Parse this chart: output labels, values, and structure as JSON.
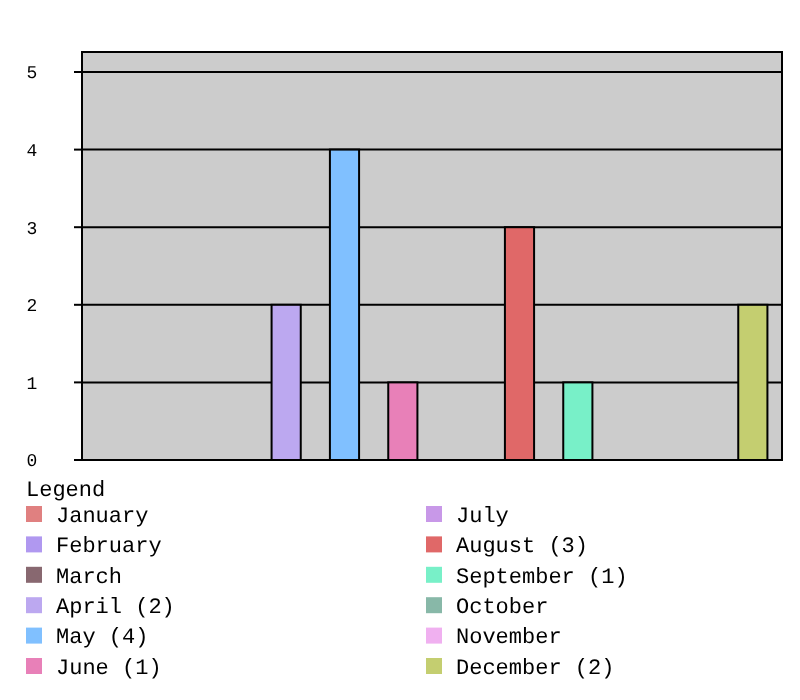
{
  "chart_data": {
    "type": "bar",
    "categories": [
      null,
      null,
      null,
      null,
      null,
      null,
      null,
      null,
      null,
      null,
      null,
      null
    ],
    "legend_title": "Legend",
    "legend": "bottom",
    "grid": "y",
    "ylim": [
      0,
      5
    ],
    "yticks": [
      0,
      1,
      2,
      3,
      4,
      5
    ],
    "series": [
      {
        "name": "January",
        "color": "#e08080",
        "values": [
          0,
          null,
          null,
          null,
          null,
          null,
          null,
          null,
          null,
          null,
          null,
          null
        ]
      },
      {
        "name": "February",
        "color": "#b098f0",
        "values": [
          null,
          0,
          null,
          null,
          null,
          null,
          null,
          null,
          null,
          null,
          null,
          null
        ]
      },
      {
        "name": "March",
        "color": "#886870",
        "values": [
          null,
          null,
          0,
          null,
          null,
          null,
          null,
          null,
          null,
          null,
          null,
          null
        ]
      },
      {
        "name": "April (2)",
        "color": "#bca8f0",
        "values": [
          null,
          null,
          null,
          2,
          null,
          null,
          null,
          null,
          null,
          null,
          null,
          null
        ]
      },
      {
        "name": "May (4)",
        "color": "#80c0ff",
        "values": [
          null,
          null,
          null,
          null,
          4,
          null,
          null,
          null,
          null,
          null,
          null,
          null
        ]
      },
      {
        "name": "June (1)",
        "color": "#e880b8",
        "values": [
          null,
          null,
          null,
          null,
          null,
          1,
          null,
          null,
          null,
          null,
          null,
          null
        ]
      },
      {
        "name": "July",
        "color": "#c898e8",
        "values": [
          null,
          null,
          null,
          null,
          null,
          null,
          0,
          null,
          null,
          null,
          null,
          null
        ]
      },
      {
        "name": "August (3)",
        "color": "#e06868",
        "values": [
          null,
          null,
          null,
          null,
          null,
          null,
          null,
          3,
          null,
          null,
          null,
          null
        ]
      },
      {
        "name": "September (1)",
        "color": "#78f0c8",
        "values": [
          null,
          null,
          null,
          null,
          null,
          null,
          null,
          null,
          1,
          null,
          null,
          null
        ]
      },
      {
        "name": "October",
        "color": "#88b8a8",
        "values": [
          null,
          null,
          null,
          null,
          null,
          null,
          null,
          null,
          null,
          0,
          null,
          null
        ]
      },
      {
        "name": "November",
        "color": "#f0b0f0",
        "values": [
          null,
          null,
          null,
          null,
          null,
          null,
          null,
          null,
          null,
          null,
          0,
          null
        ]
      },
      {
        "name": "December (2)",
        "color": "#c4ce70",
        "values": [
          null,
          null,
          null,
          null,
          null,
          null,
          null,
          null,
          null,
          null,
          null,
          2
        ]
      }
    ]
  }
}
